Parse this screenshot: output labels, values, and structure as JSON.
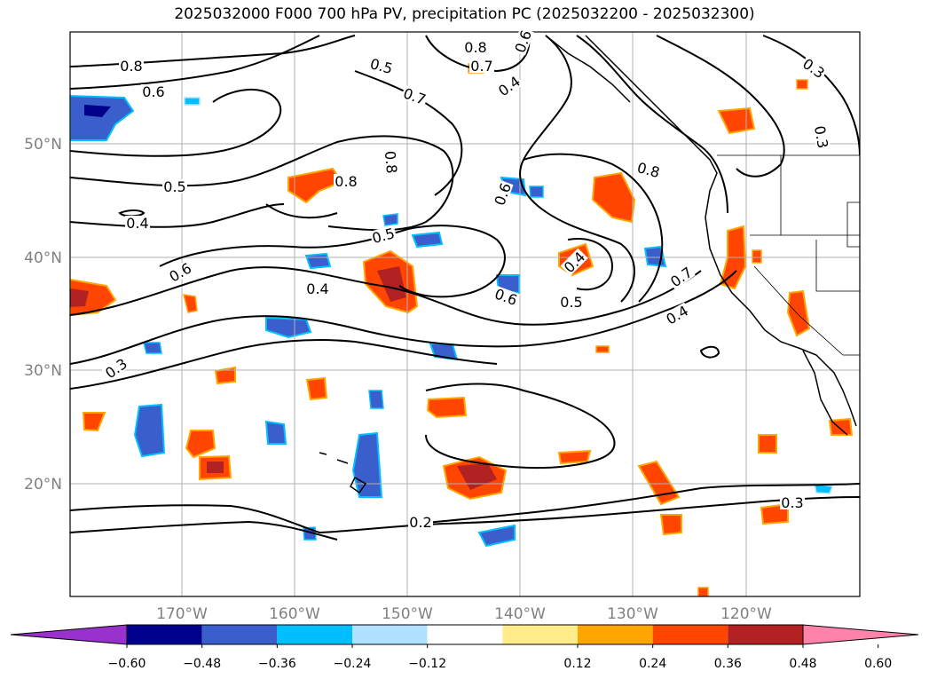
{
  "title": "2025032000 F000 700 hPa PV, precipitation PC (2025032200 - 2025032300)",
  "lat_labels": [
    "50°N",
    "40°N",
    "30°N",
    "20°N"
  ],
  "lon_labels": [
    "170°W",
    "160°W",
    "150°W",
    "140°W",
    "130°W",
    "120°W"
  ],
  "colorbar": {
    "ticks": [
      "−0.60",
      "−0.48",
      "−0.36",
      "−0.24",
      "−0.12",
      "0.12",
      "0.24",
      "0.36",
      "0.48",
      "0.60"
    ],
    "colors": [
      "#9932cc",
      "#00008b",
      "#3a5fcd",
      "#00bfff",
      "#b0e2ff",
      "#ffffff",
      "#ffec8b",
      "#ffa500",
      "#ff4500",
      "#b22222",
      "#ff82ab"
    ]
  },
  "contour_labels": [
    {
      "text": "0.8"
    },
    {
      "text": "0.6"
    },
    {
      "text": "0.5"
    },
    {
      "text": "0.4"
    },
    {
      "text": "0.6"
    },
    {
      "text": "0.4"
    },
    {
      "text": "0.3"
    },
    {
      "text": "0.8"
    },
    {
      "text": "0.7"
    },
    {
      "text": "0.6"
    },
    {
      "text": "0.4"
    },
    {
      "text": "0.5"
    },
    {
      "text": "0.7"
    },
    {
      "text": "0.8"
    },
    {
      "text": "0.8"
    },
    {
      "text": "0.5"
    },
    {
      "text": "0.6"
    },
    {
      "text": "0.4"
    },
    {
      "text": "0.5"
    },
    {
      "text": "0.6"
    },
    {
      "text": "0.8"
    },
    {
      "text": "0.7"
    },
    {
      "text": "0.4"
    },
    {
      "text": "0.3"
    },
    {
      "text": "0.3"
    },
    {
      "text": "0.2"
    },
    {
      "text": "0.3"
    }
  ]
}
